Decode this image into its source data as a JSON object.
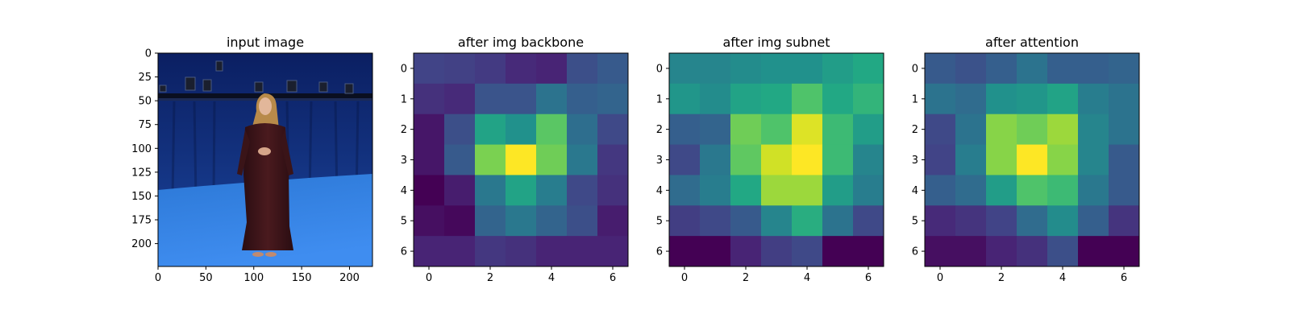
{
  "chart_data": [
    {
      "type": "image",
      "title": "input image",
      "image_description": "photo of a woman in a long dark red dress standing in a blue-lit studio with a lighting rig",
      "xticks": [
        "0",
        "50",
        "100",
        "150",
        "200"
      ],
      "yticks": [
        "0",
        "25",
        "50",
        "75",
        "100",
        "125",
        "150",
        "175",
        "200"
      ],
      "xlim": [
        0,
        224
      ],
      "ylim": [
        224,
        0
      ]
    },
    {
      "type": "heatmap",
      "title": "after img backbone",
      "colormap": "viridis",
      "xticks": [
        "0",
        "2",
        "4",
        "6"
      ],
      "yticks": [
        "0",
        "1",
        "2",
        "3",
        "4",
        "5",
        "6"
      ],
      "values": [
        [
          0.2,
          0.19,
          0.17,
          0.12,
          0.1,
          0.24,
          0.28
        ],
        [
          0.14,
          0.12,
          0.26,
          0.26,
          0.38,
          0.3,
          0.32
        ],
        [
          0.06,
          0.24,
          0.58,
          0.5,
          0.74,
          0.36,
          0.22
        ],
        [
          0.06,
          0.28,
          0.8,
          1.0,
          0.78,
          0.4,
          0.16
        ],
        [
          0.0,
          0.08,
          0.4,
          0.58,
          0.42,
          0.22,
          0.14
        ],
        [
          0.04,
          0.02,
          0.32,
          0.4,
          0.32,
          0.24,
          0.08
        ],
        [
          0.1,
          0.1,
          0.16,
          0.14,
          0.1,
          0.1,
          0.1
        ]
      ]
    },
    {
      "type": "heatmap",
      "title": "after img subnet",
      "colormap": "viridis",
      "xticks": [
        "0",
        "2",
        "4",
        "6"
      ],
      "yticks": [
        "0",
        "1",
        "2",
        "3",
        "4",
        "5",
        "6"
      ],
      "values": [
        [
          0.45,
          0.45,
          0.48,
          0.5,
          0.5,
          0.55,
          0.6
        ],
        [
          0.52,
          0.48,
          0.58,
          0.6,
          0.72,
          0.6,
          0.65
        ],
        [
          0.3,
          0.32,
          0.78,
          0.72,
          0.95,
          0.68,
          0.55
        ],
        [
          0.22,
          0.4,
          0.75,
          0.93,
          1.0,
          0.68,
          0.45
        ],
        [
          0.35,
          0.42,
          0.6,
          0.85,
          0.85,
          0.55,
          0.42
        ],
        [
          0.18,
          0.22,
          0.28,
          0.45,
          0.62,
          0.38,
          0.22
        ],
        [
          0.0,
          0.0,
          0.1,
          0.18,
          0.22,
          0.0,
          0.0
        ]
      ]
    },
    {
      "type": "heatmap",
      "title": "after attention",
      "colormap": "viridis",
      "xticks": [
        "0",
        "2",
        "4",
        "6"
      ],
      "yticks": [
        "0",
        "1",
        "2",
        "3",
        "4",
        "5",
        "6"
      ],
      "values": [
        [
          0.28,
          0.25,
          0.3,
          0.38,
          0.3,
          0.3,
          0.32
        ],
        [
          0.38,
          0.35,
          0.5,
          0.52,
          0.58,
          0.42,
          0.38
        ],
        [
          0.22,
          0.38,
          0.82,
          0.78,
          0.85,
          0.45,
          0.38
        ],
        [
          0.2,
          0.42,
          0.82,
          1.0,
          0.82,
          0.45,
          0.28
        ],
        [
          0.3,
          0.35,
          0.55,
          0.72,
          0.68,
          0.4,
          0.28
        ],
        [
          0.12,
          0.15,
          0.2,
          0.35,
          0.48,
          0.3,
          0.15
        ],
        [
          0.04,
          0.04,
          0.1,
          0.14,
          0.24,
          0.0,
          0.0
        ]
      ]
    }
  ]
}
